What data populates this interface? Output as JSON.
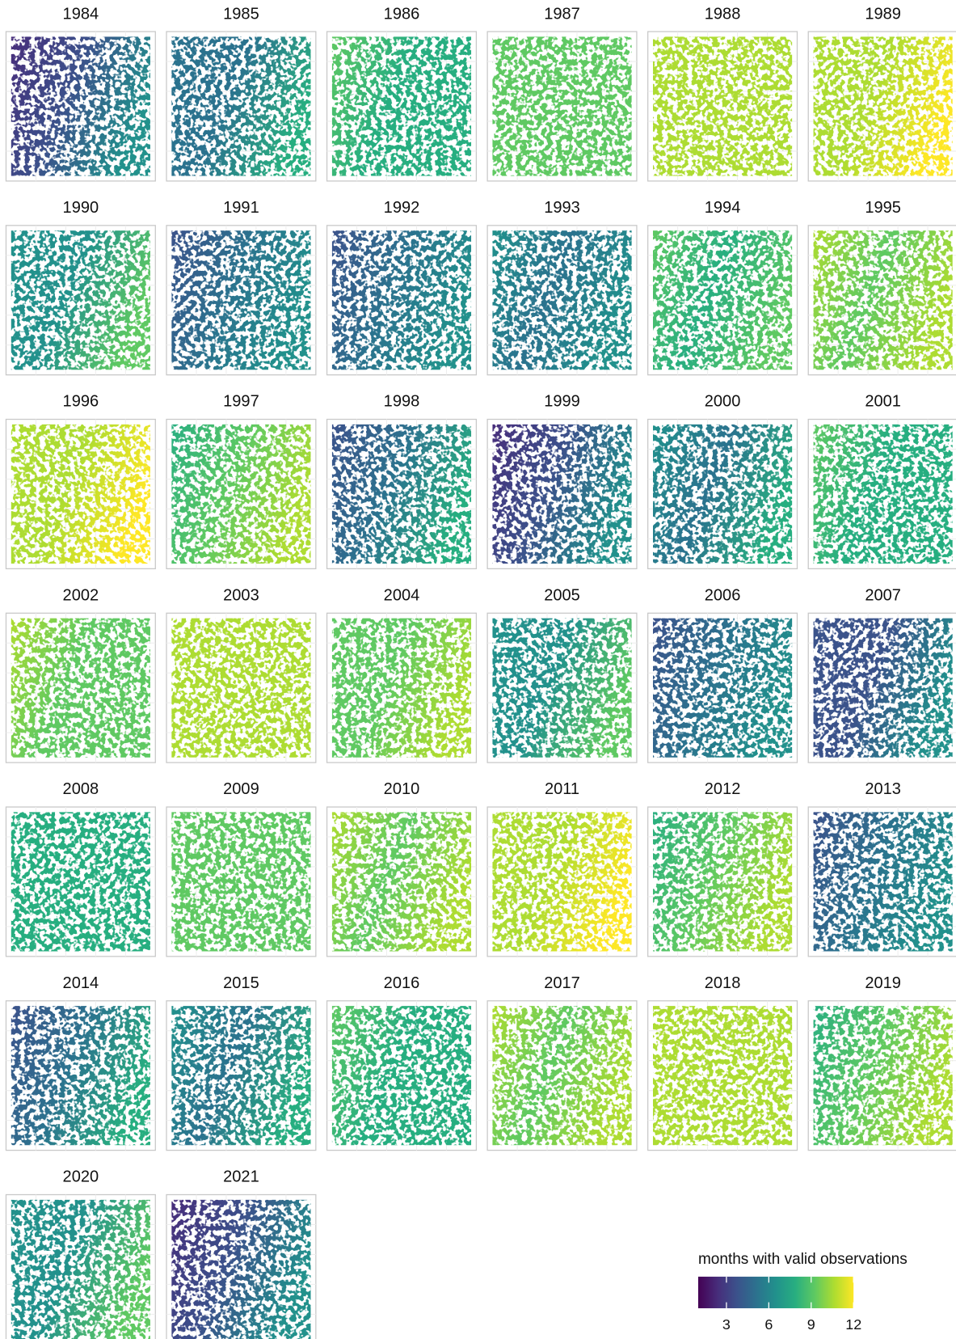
{
  "panels": [
    {
      "title": "1984"
    },
    {
      "title": "1985"
    },
    {
      "title": "1986"
    },
    {
      "title": "1987"
    },
    {
      "title": "1988"
    },
    {
      "title": "1989"
    },
    {
      "title": "1990"
    },
    {
      "title": "1991"
    },
    {
      "title": "1992"
    },
    {
      "title": "1993"
    },
    {
      "title": "1994"
    },
    {
      "title": "1995"
    },
    {
      "title": "1996"
    },
    {
      "title": "1997"
    },
    {
      "title": "1998"
    },
    {
      "title": "1999"
    },
    {
      "title": "2000"
    },
    {
      "title": "2001"
    },
    {
      "title": "2002"
    },
    {
      "title": "2003"
    },
    {
      "title": "2004"
    },
    {
      "title": "2005"
    },
    {
      "title": "2006"
    },
    {
      "title": "2007"
    },
    {
      "title": "2008"
    },
    {
      "title": "2009"
    },
    {
      "title": "2010"
    },
    {
      "title": "2011"
    },
    {
      "title": "2012"
    },
    {
      "title": "2013"
    },
    {
      "title": "2014"
    },
    {
      "title": "2015"
    },
    {
      "title": "2016"
    },
    {
      "title": "2017"
    },
    {
      "title": "2018"
    },
    {
      "title": "2019"
    },
    {
      "title": "2020"
    },
    {
      "title": "2021"
    }
  ],
  "legend": {
    "title": "months with valid observations",
    "lim": [
      1,
      12
    ],
    "ticks": [
      3,
      6,
      9,
      12
    ],
    "colors": [
      "#440154",
      "#472d7b",
      "#3b528b",
      "#2c728e",
      "#21918c",
      "#28ae80",
      "#5ec962",
      "#addc30",
      "#fde725"
    ]
  }
}
